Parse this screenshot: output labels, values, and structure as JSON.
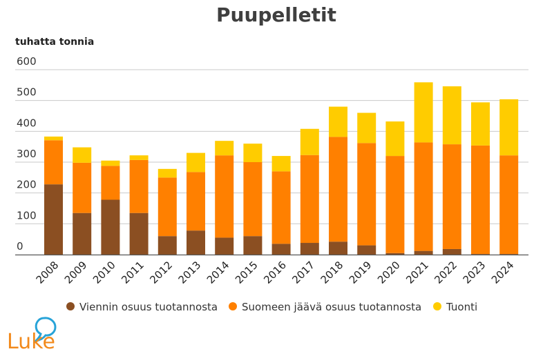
{
  "chart_data": {
    "type": "bar",
    "stacked": true,
    "title": "Puupelletit",
    "ylabel": "tuhatta tonnia",
    "xlabel": "",
    "ylim": [
      0,
      600
    ],
    "yticks": [
      0,
      100,
      200,
      300,
      400,
      500,
      600
    ],
    "grid": true,
    "legend_position": "bottom",
    "categories": [
      "2008",
      "2009",
      "2010",
      "2011",
      "2012",
      "2013",
      "2014",
      "2015",
      "2016",
      "2017",
      "2018",
      "2019",
      "2020",
      "2021",
      "2022",
      "2023",
      "2024"
    ],
    "series": [
      {
        "name": "Viennin osuus tuotannosta",
        "color": "#8b4f22",
        "values": [
          228,
          135,
          178,
          135,
          60,
          78,
          55,
          60,
          35,
          38,
          42,
          30,
          5,
          12,
          18,
          2,
          2
        ]
      },
      {
        "name": "Suomeen jäävä osuus tuotannosta",
        "color": "#ff8000",
        "values": [
          143,
          163,
          110,
          172,
          190,
          190,
          267,
          240,
          235,
          285,
          340,
          332,
          315,
          352,
          340,
          352,
          320
        ]
      },
      {
        "name": "Tuonti",
        "color": "#ffcc00",
        "values": [
          12,
          50,
          17,
          15,
          28,
          62,
          47,
          60,
          50,
          85,
          98,
          98,
          112,
          195,
          188,
          140,
          182
        ]
      }
    ]
  },
  "logo": {
    "text": "Luke"
  }
}
